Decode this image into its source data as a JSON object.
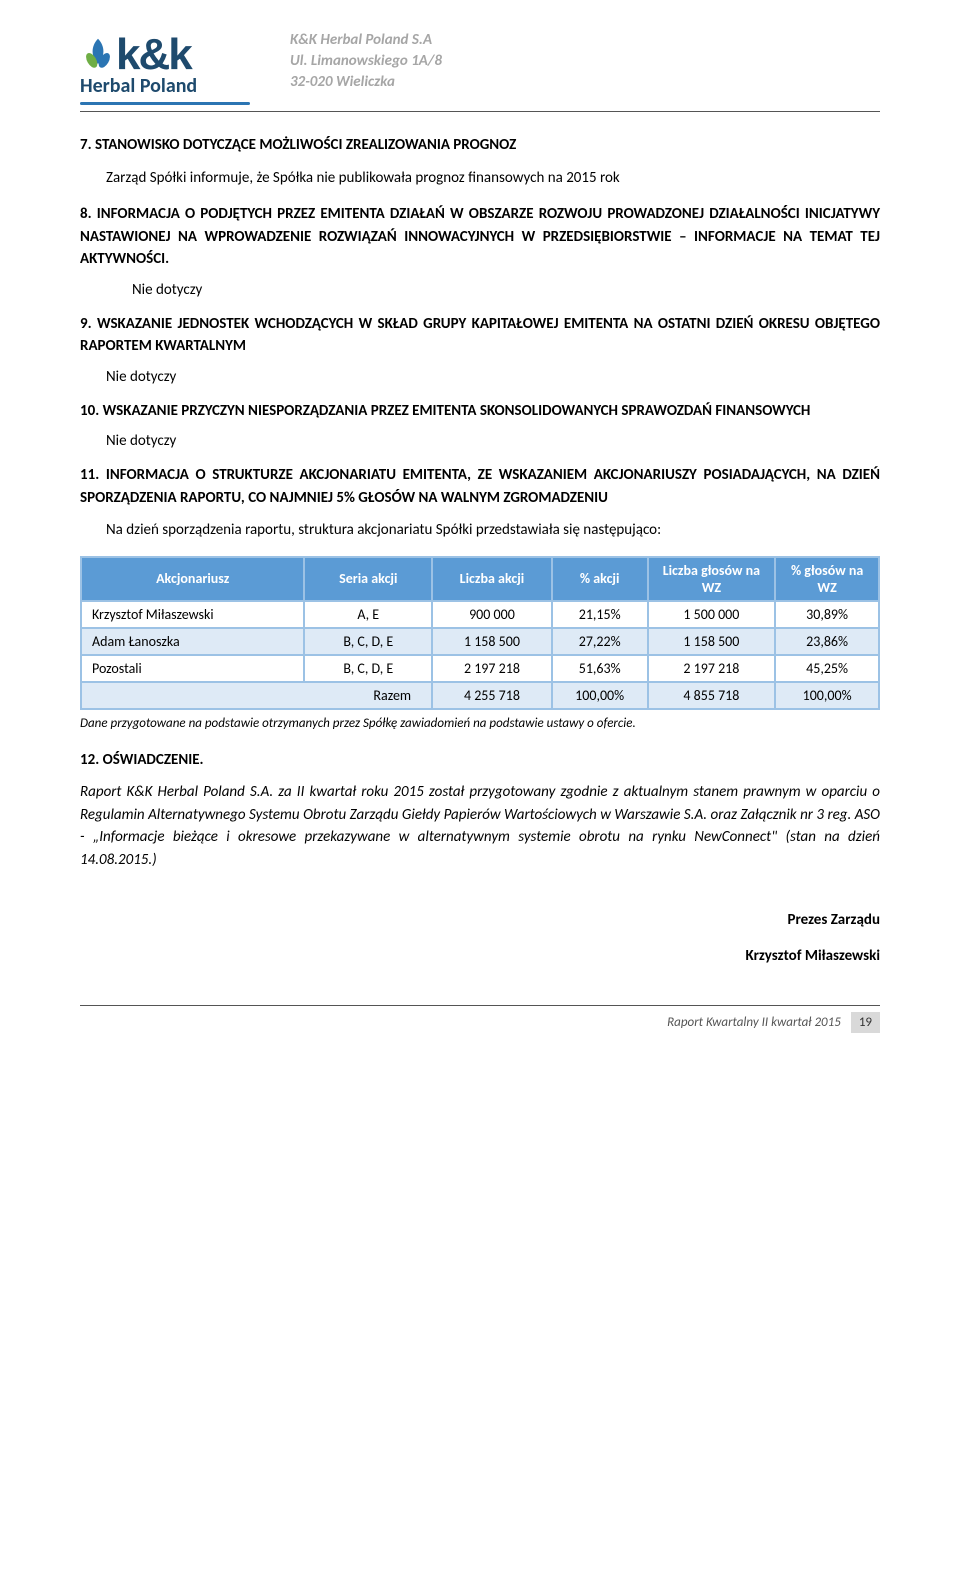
{
  "header": {
    "company_line1": "K&K Herbal Poland S.A",
    "company_line2": "Ul. Limanowskiego 1A/8",
    "company_line3": "32-020 Wieliczka",
    "logo_kk": "k&k",
    "logo_sub": "Herbal Poland",
    "logo_colors": {
      "dark": "#1e4a6d",
      "line": "#2b75b3",
      "leaf_blue": "#2b75b3",
      "leaf_green": "#6fae45"
    }
  },
  "s7": {
    "num": "7.",
    "title": "STANOWISKO DOTYCZĄCE MOŻLIWOŚCI ZREALIZOWANIA PROGNOZ",
    "body": "Zarząd Spółki informuje, że Spółka nie publikowała prognoz finansowych na 2015 rok"
  },
  "s8": {
    "num": "8.",
    "title": "INFORMACJA O PODJĘTYCH PRZEZ EMITENTA DZIAŁAŃ W OBSZARZE ROZWOJU PROWADZONEJ DZIAŁALNOŚCI INICJATYWY NASTAWIONEJ NA WPROWADZENIE ROZWIĄZAŃ INNOWACYJNYCH W PRZEDSIĘBIORSTWIE – INFORMACJE NA TEMAT TEJ AKTYWNOŚCI.",
    "nie": "Nie dotyczy"
  },
  "s9": {
    "num": "9.",
    "title": "WSKAZANIE JEDNOSTEK WCHODZĄCYCH W SKŁAD GRUPY KAPITAŁOWEJ EMITENTA NA OSTATNI DZIEŃ OKRESU OBJĘTEGO RAPORTEM KWARTALNYM",
    "nie": "Nie dotyczy"
  },
  "s10": {
    "num": "10.",
    "title": "WSKAZANIE PRZYCZYN NIESPORZĄDZANIA PRZEZ EMITENTA SKONSOLIDOWANYCH SPRAWOZDAŃ FINANSOWYCH",
    "nie": "Nie dotyczy"
  },
  "s11": {
    "num": "11.",
    "title": "INFORMACJA O STRUKTURZE AKCJONARIATU EMITENTA, ZE WSKAZANIEM AKCJONARIUSZY POSIADAJĄCYCH, NA DZIEŃ SPORZĄDZENIA RAPORTU, CO NAJMNIEJ 5% GŁOSÓW NA WALNYM ZGROMADZENIU",
    "body": "Na dzień sporządzenia raportu, struktura akcjonariatu Spółki przedstawiała się następująco:"
  },
  "table": {
    "headers": [
      "Akcjonariusz",
      "Seria akcji",
      "Liczba akcji",
      "% akcji",
      "Liczba głosów na WZ",
      "% głosów na WZ"
    ],
    "rows": [
      {
        "cells": [
          "Krzysztof Miłaszewski",
          "A, E",
          "900 000",
          "21,15%",
          "1 500 000",
          "30,89%"
        ],
        "alt": false
      },
      {
        "cells": [
          "Adam Łanoszka",
          "B, C, D, E",
          "1 158 500",
          "27,22%",
          "1 158 500",
          "23,86%"
        ],
        "alt": true
      },
      {
        "cells": [
          "Pozostali",
          "B, C, D, E",
          "2 197 218",
          "51,63%",
          "2 197 218",
          "45,25%"
        ],
        "alt": false
      }
    ],
    "sum": [
      "Razem",
      "",
      "4 255 718",
      "100,00%",
      "4 855 718",
      "100,00%"
    ],
    "col_widths": [
      "28%",
      "16%",
      "15%",
      "12%",
      "16%",
      "13%"
    ],
    "header_bg": "#5b9bd5",
    "border": "#9cc2e5",
    "alt_bg": "#deeaf6"
  },
  "table_note": "Dane przygotowane na podstawie otrzymanych przez Spółkę zawiadomień na podstawie ustawy o ofercie.",
  "s12": {
    "num": "12.",
    "title": "OŚWIADCZENIE."
  },
  "declaration": "Raport K&K Herbal Poland S.A. za II kwartał roku 2015 został przygotowany zgodnie z aktualnym stanem prawnym w oparciu o Regulamin Alternatywnego Systemu Obrotu Zarządu Giełdy Papierów Wartościowych w Warszawie S.A. oraz Załącznik nr 3 reg. ASO - „Informacje bieżące i okresowe przekazywane w alternatywnym systemie obrotu na rynku NewConnect\" (stan na dzień 14.08.2015.)",
  "sig": {
    "role": "Prezes Zarządu",
    "name": "Krzysztof Miłaszewski"
  },
  "footer": {
    "text": "Raport Kwartalny II kwartał 2015",
    "page": "19"
  }
}
